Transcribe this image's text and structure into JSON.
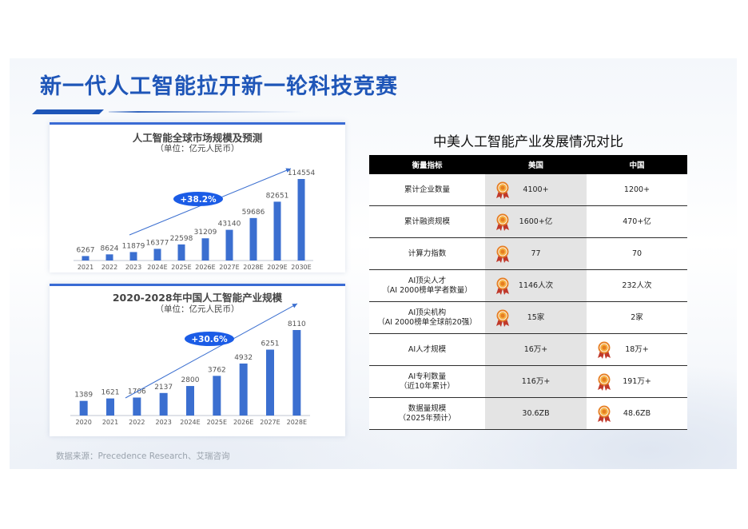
{
  "page": {
    "title": "新一代人工智能拉开新一轮科技竞赛",
    "source": "数据来源：Precedence Research、艾瑞咨询"
  },
  "colors": {
    "bar": "#3b6fd0",
    "title": "#1f56b8",
    "badge": "#1b5ce6",
    "arrow": "#3b6fd0"
  },
  "chart_data": [
    {
      "type": "bar",
      "title": "人工智能全球市场规模及预测",
      "subtitle": "（单位：亿元人民币）",
      "categories": [
        "2021",
        "2022",
        "2023",
        "2024E",
        "2025E",
        "2026E",
        "2027E",
        "2028E",
        "2029E",
        "2030E"
      ],
      "values": [
        6267,
        8624,
        11879,
        16377,
        22598,
        31209,
        43140,
        59686,
        82651,
        114554
      ],
      "value_labels": [
        "6267",
        "8624",
        "11879",
        "16377",
        "22598",
        "31209",
        "43140",
        "59686",
        "82651",
        "114554"
      ],
      "annotation": "+38.2%",
      "ylim": [
        0,
        114554
      ],
      "grid": false,
      "legend": "none"
    },
    {
      "type": "bar",
      "title": "2020-2028年中国人工智能产业规模",
      "subtitle": "（单位：亿元人民币）",
      "categories": [
        "2020",
        "2021",
        "2022",
        "2023",
        "2024E",
        "2025E",
        "2026E",
        "2027E",
        "2028E"
      ],
      "values": [
        1389,
        1621,
        1706,
        2137,
        2800,
        3762,
        4932,
        6251,
        8110
      ],
      "value_labels": [
        "1389",
        "1621",
        "1706",
        "2137",
        "2800",
        "3762",
        "4932",
        "6251",
        "8110"
      ],
      "annotation": "+30.6%",
      "ylim": [
        0,
        8110
      ],
      "grid": false,
      "legend": "none"
    }
  ],
  "comparison": {
    "title": "中美人工智能产业发展情况对比",
    "headers": [
      "衡量指标",
      "美国",
      "中国"
    ],
    "medal_icon": "medal-icon",
    "rows": [
      {
        "metric": [
          "累计企业数量"
        ],
        "us": "4100+",
        "cn": "1200+",
        "leader": "us"
      },
      {
        "metric": [
          "累计融资规模"
        ],
        "us": "1600+亿",
        "cn": "470+亿",
        "leader": "us"
      },
      {
        "metric": [
          "计算力指数"
        ],
        "us": "77",
        "cn": "70",
        "leader": "us"
      },
      {
        "metric": [
          "AI顶尖人才",
          "（AI 2000榜单学者数量）"
        ],
        "us": "1146人次",
        "cn": "232人次",
        "leader": "us"
      },
      {
        "metric": [
          "AI顶尖机构",
          "（AI 2000榜单全球前20强）"
        ],
        "us": "15家",
        "cn": "2家",
        "leader": "us"
      },
      {
        "metric": [
          "AI人才规模"
        ],
        "us": "16万+",
        "cn": "18万+",
        "leader": "cn"
      },
      {
        "metric": [
          "AI专利数量",
          "（近10年累计）"
        ],
        "us": "116万+",
        "cn": "191万+",
        "leader": "cn"
      },
      {
        "metric": [
          "数据量规模",
          "（2025年预计）"
        ],
        "us": "30.6ZB",
        "cn": "48.6ZB",
        "leader": "cn"
      }
    ]
  }
}
